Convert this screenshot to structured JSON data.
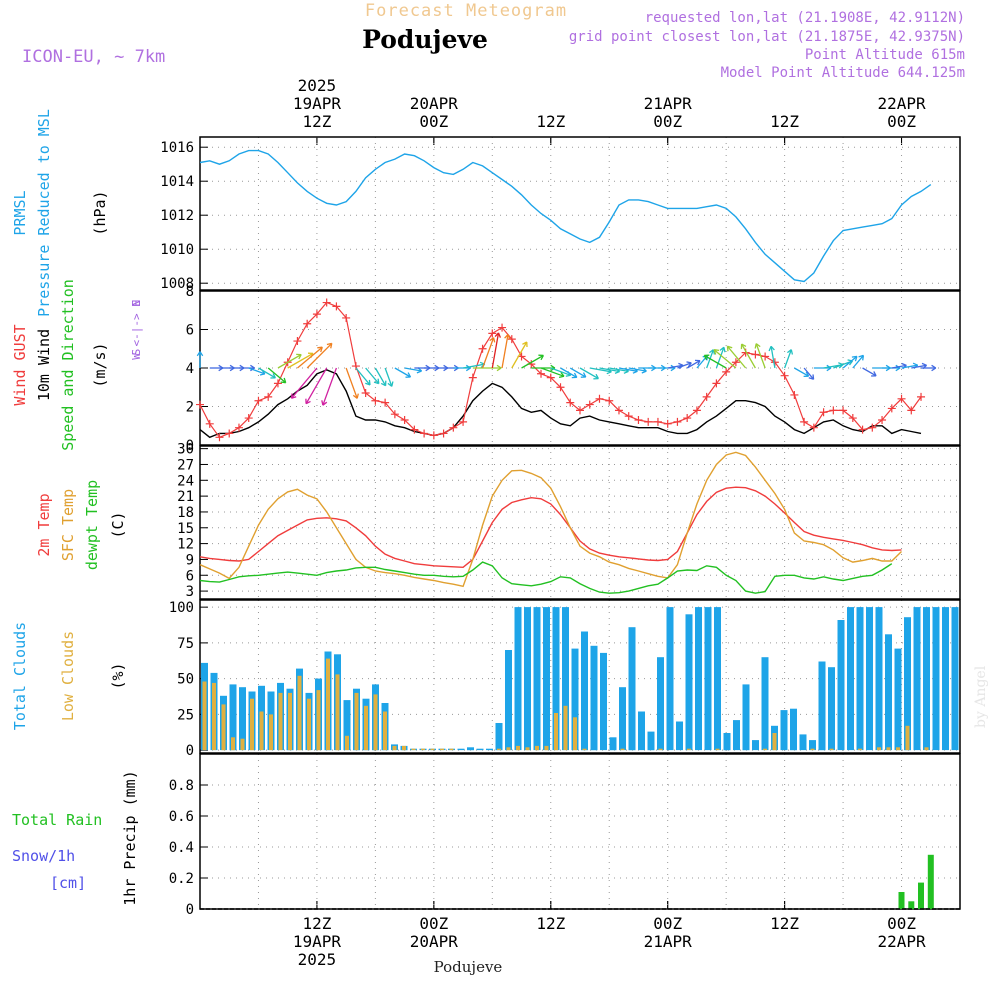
{
  "header": {
    "super_title": "Forecast Meteogram",
    "location": "Podujeve",
    "model": "ICON-EU, ~ 7km",
    "requested": "requested lon,lat (21.1908E, 42.9112N)",
    "grid_point": "grid point closest lon,lat (21.1875E, 42.9375N)",
    "point_altitude": "Point Altitude 615m",
    "model_altitude": "Model Point Altitude 644.125m",
    "footer_location": "Podujeve",
    "watermark": "by Angel"
  },
  "time_axis": {
    "start": "19APR 00Z",
    "end": "22APR 06Z",
    "step_hours": 1,
    "top_ticks": [
      {
        "lines": [
          "2025",
          "19APR",
          "12Z"
        ],
        "hour": 12
      },
      {
        "lines": [
          "20APR",
          "00Z"
        ],
        "hour": 24
      },
      {
        "lines": [
          "12Z"
        ],
        "hour": 36
      },
      {
        "lines": [
          "21APR",
          "00Z"
        ],
        "hour": 48
      },
      {
        "lines": [
          "12Z"
        ],
        "hour": 60
      },
      {
        "lines": [
          "22APR",
          "00Z"
        ],
        "hour": 72
      }
    ],
    "bottom_ticks": [
      {
        "lines": [
          "12Z",
          "19APR",
          "2025"
        ],
        "hour": 12
      },
      {
        "lines": [
          "00Z",
          "20APR"
        ],
        "hour": 24
      },
      {
        "lines": [
          "12Z"
        ],
        "hour": 36
      },
      {
        "lines": [
          "00Z",
          "21APR"
        ],
        "hour": 48
      },
      {
        "lines": [
          "12Z"
        ],
        "hour": 60
      },
      {
        "lines": [
          "00Z",
          "22APR"
        ],
        "hour": 72
      }
    ]
  },
  "colors": {
    "pressure": "#1ea4e8",
    "gust": "#f03c3c",
    "wind": "#000000",
    "wind_legend": "#22c022",
    "compass": "#a060e0",
    "t2m": "#f03c3c",
    "tsfc": "#e0a030",
    "dewpt": "#22c022",
    "total_clouds": "#1ea4e8",
    "low_clouds": "#e0b040",
    "rain": "#22c022",
    "snow": "#5050e8",
    "header": "#b070e0",
    "super_title": "#f0c890"
  },
  "chart_data": [
    {
      "type": "line",
      "title": "Pressure Reduced to MSL",
      "ylabels": [
        "PRMSL",
        "Pressure Reduced to MSL",
        "(hPa)"
      ],
      "ylim": [
        1007.6,
        1016.6
      ],
      "yticks": [
        1008,
        1010,
        1012,
        1014,
        1016
      ],
      "series": [
        {
          "name": "PRMSL",
          "values": [
            1015.1,
            1015.2,
            1015.0,
            1015.2,
            1015.6,
            1015.8,
            1015.8,
            1015.6,
            1015.1,
            1014.5,
            1013.9,
            1013.4,
            1013.0,
            1012.7,
            1012.6,
            1012.8,
            1013.4,
            1014.2,
            1014.7,
            1015.1,
            1015.3,
            1015.6,
            1015.5,
            1015.2,
            1014.8,
            1014.5,
            1014.4,
            1014.7,
            1015.1,
            1014.9,
            1014.5,
            1014.1,
            1013.7,
            1013.2,
            1012.6,
            1012.1,
            1011.7,
            1011.2,
            1010.9,
            1010.6,
            1010.4,
            1010.7,
            1011.6,
            1012.6,
            1012.9,
            1012.9,
            1012.8,
            1012.6,
            1012.4,
            1012.4,
            1012.4,
            1012.4,
            1012.5,
            1012.6,
            1012.4,
            1011.9,
            1011.2,
            1010.4,
            1009.7,
            1009.2,
            1008.7,
            1008.2,
            1008.1,
            1008.6,
            1009.6,
            1010.5,
            1011.1,
            1011.2,
            1011.3,
            1011.4,
            1011.5,
            1011.8,
            1012.6,
            1013.1,
            1013.4,
            1013.8
          ]
        }
      ]
    },
    {
      "type": "line",
      "title": "Wind Gust, 10m Wind Speed and Direction",
      "ylabels": [
        "Wind GUST",
        "10m Wind",
        "Speed and Direction",
        "(m/s)"
      ],
      "compass": [
        "N",
        "W <-|-> E",
        "S"
      ],
      "ylim": [
        0,
        8
      ],
      "yticks": [
        0,
        2,
        4,
        6,
        8
      ],
      "series": [
        {
          "name": "Wind GUST",
          "values": [
            2.1,
            1.1,
            0.4,
            0.6,
            0.9,
            1.4,
            2.3,
            2.5,
            3.2,
            4.3,
            5.4,
            6.3,
            6.8,
            7.4,
            7.2,
            6.6,
            4.1,
            2.7,
            2.3,
            2.2,
            1.6,
            1.3,
            0.8,
            0.6,
            0.5,
            0.6,
            0.9,
            1.2,
            3.5,
            5.0,
            5.8,
            6.1,
            5.5,
            4.6,
            4.2,
            3.7,
            3.5,
            3.0,
            2.2,
            1.8,
            2.1,
            2.4,
            2.3,
            1.8,
            1.5,
            1.3,
            1.2,
            1.2,
            1.1,
            1.2,
            1.4,
            1.8,
            2.5,
            3.2,
            3.8,
            4.3,
            4.8,
            4.7,
            4.6,
            4.3,
            3.6,
            2.6,
            1.2,
            0.9,
            1.7,
            1.8,
            1.8,
            1.4,
            0.8,
            0.9,
            1.3,
            1.9,
            2.4,
            1.8,
            2.5
          ]
        },
        {
          "name": "10m Wind",
          "values": [
            0.8,
            0.4,
            0.6,
            0.6,
            0.7,
            0.9,
            1.2,
            1.6,
            2.1,
            2.4,
            2.8,
            3.1,
            3.7,
            3.9,
            3.7,
            2.8,
            1.5,
            1.3,
            1.3,
            1.2,
            1.0,
            0.9,
            0.7,
            0.6,
            0.5,
            0.6,
            0.9,
            1.5,
            2.3,
            2.8,
            3.2,
            3.0,
            2.5,
            1.9,
            1.7,
            1.8,
            1.4,
            1.1,
            1.0,
            1.4,
            1.5,
            1.3,
            1.2,
            1.1,
            1.0,
            0.9,
            0.9,
            0.9,
            0.7,
            0.6,
            0.6,
            0.8,
            1.2,
            1.5,
            1.9,
            2.3,
            2.3,
            2.2,
            2.0,
            1.5,
            1.2,
            0.8,
            0.6,
            0.9,
            1.2,
            1.3,
            1.0,
            0.8,
            0.7,
            1.0,
            1.0,
            0.6,
            0.8,
            0.7,
            0.6
          ]
        },
        {
          "name": "Wind Direction",
          "unit": "degrees_to",
          "values": [
            0,
            90,
            90,
            90,
            90,
            110,
            120,
            130,
            60,
            60,
            50,
            45,
            220,
            210,
            200,
            160,
            140,
            140,
            150,
            160,
            120,
            100,
            90,
            90,
            90,
            90,
            90,
            80,
            90,
            20,
            10,
            10,
            30,
            60,
            90,
            110,
            110,
            120,
            120,
            120,
            100,
            100,
            100,
            100,
            100,
            90,
            90,
            90,
            80,
            70,
            60,
            40,
            20,
            20,
            300,
            310,
            320,
            330,
            340,
            350,
            20,
            120,
            140,
            90,
            80,
            70,
            50,
            40,
            120,
            90,
            90,
            80,
            80,
            80,
            90
          ]
        }
      ]
    },
    {
      "type": "line",
      "title": "2m Temp, SFC Temp, dewpt Temp",
      "ylabels": [
        "2m Temp",
        "SFC Temp",
        "dewpt Temp",
        "(C)"
      ],
      "ylim": [
        1.5,
        30.5
      ],
      "yticks": [
        3,
        6,
        9,
        12,
        15,
        18,
        21,
        24,
        27,
        30
      ],
      "series": [
        {
          "name": "2m Temp",
          "values": [
            9.5,
            9.2,
            9.0,
            8.8,
            8.7,
            9.0,
            10.5,
            12.0,
            13.5,
            14.5,
            15.5,
            16.5,
            16.8,
            16.9,
            16.7,
            16.3,
            15.0,
            13.5,
            11.5,
            10.0,
            9.2,
            8.7,
            8.2,
            8.0,
            7.8,
            7.7,
            7.6,
            7.5,
            9.0,
            12.5,
            16.0,
            18.5,
            19.8,
            20.3,
            20.7,
            20.5,
            19.5,
            17.5,
            15.0,
            12.5,
            11.0,
            10.2,
            9.8,
            9.5,
            9.3,
            9.1,
            8.9,
            8.8,
            9.0,
            10.5,
            14.0,
            17.5,
            20.0,
            21.7,
            22.5,
            22.7,
            22.6,
            22.0,
            21.0,
            19.5,
            17.8,
            16.0,
            14.3,
            13.6,
            13.2,
            12.9,
            12.6,
            12.2,
            11.8,
            11.2,
            10.8,
            10.7,
            10.8
          ]
        },
        {
          "name": "SFC Temp",
          "values": [
            8.0,
            7.2,
            6.4,
            5.4,
            7.5,
            11.5,
            15.5,
            18.5,
            20.5,
            21.8,
            22.3,
            21.2,
            20.5,
            18.0,
            15.0,
            12.0,
            9.0,
            7.5,
            6.8,
            6.5,
            6.3,
            6.0,
            5.6,
            5.3,
            5.0,
            4.6,
            4.3,
            3.9,
            9.0,
            15.5,
            21.0,
            24.0,
            25.8,
            25.9,
            25.3,
            24.5,
            22.5,
            19.0,
            15.0,
            11.5,
            10.2,
            9.5,
            8.5,
            8.0,
            7.3,
            6.8,
            6.3,
            5.8,
            5.5,
            8.0,
            14.0,
            19.5,
            24.0,
            27.0,
            28.8,
            29.3,
            28.7,
            26.5,
            24.0,
            21.5,
            18.5,
            14.0,
            12.5,
            12.2,
            11.8,
            10.8,
            9.3,
            8.5,
            8.8,
            9.2,
            8.7,
            8.7,
            10.5
          ]
        },
        {
          "name": "dewpt Temp",
          "values": [
            5.0,
            4.8,
            4.7,
            5.2,
            5.7,
            5.9,
            6.0,
            6.2,
            6.4,
            6.6,
            6.4,
            6.2,
            6.0,
            6.5,
            6.8,
            7.0,
            7.4,
            7.5,
            7.5,
            7.1,
            6.8,
            6.5,
            6.2,
            6.0,
            6.0,
            5.8,
            5.7,
            5.8,
            7.0,
            8.5,
            7.8,
            5.5,
            4.4,
            4.2,
            4.0,
            4.3,
            4.8,
            5.7,
            5.5,
            4.4,
            3.5,
            2.8,
            2.6,
            2.7,
            3.0,
            3.5,
            4.0,
            4.3,
            5.5,
            6.8,
            7.0,
            6.9,
            7.8,
            7.5,
            6.0,
            5.0,
            3.0,
            2.6,
            2.9,
            5.8,
            6.0,
            6.0,
            5.5,
            5.3,
            5.7,
            5.3,
            5.0,
            5.4,
            5.8,
            6.0,
            7.0,
            8.2
          ]
        }
      ]
    },
    {
      "type": "bar",
      "title": "Total Clouds, Low Clouds",
      "ylabels": [
        "Total Clouds",
        "Low Clouds",
        "(%)"
      ],
      "ylim": [
        -2,
        105
      ],
      "yticks": [
        0,
        25,
        50,
        75,
        100
      ],
      "series": [
        {
          "name": "Total Clouds",
          "values": [
            61,
            54,
            38,
            46,
            44,
            41,
            45,
            41,
            47,
            43,
            57,
            40,
            50,
            69,
            67,
            35,
            43,
            36,
            46,
            33,
            4,
            3,
            1,
            1,
            1,
            1,
            1,
            1,
            2,
            1,
            1,
            19,
            70,
            100,
            100,
            100,
            100,
            100,
            100,
            71,
            83,
            73,
            68,
            9,
            44,
            86,
            27,
            13,
            65,
            100,
            20,
            95,
            100,
            100,
            100,
            12,
            21,
            46,
            7,
            65,
            17,
            28,
            29,
            11,
            7,
            62,
            58,
            91,
            100,
            100,
            100,
            100,
            81,
            71,
            93,
            100,
            100,
            100,
            100,
            100
          ]
        },
        {
          "name": "Low Clouds",
          "values": [
            48,
            47,
            32,
            9,
            8,
            36,
            27,
            25,
            40,
            40,
            52,
            36,
            42,
            64,
            53,
            10,
            40,
            31,
            39,
            27,
            3,
            3,
            1,
            1,
            1,
            1,
            1,
            0,
            0,
            0,
            0,
            1,
            2,
            3,
            2,
            3,
            3,
            26,
            31,
            23,
            1,
            0,
            0,
            0,
            1,
            0,
            0,
            0,
            1,
            0,
            0,
            1,
            0,
            0,
            1,
            0,
            0,
            0,
            0,
            1,
            12,
            0,
            0,
            0,
            1,
            0,
            1,
            0,
            0,
            1,
            0,
            2,
            2,
            2,
            17,
            0,
            2,
            0,
            0,
            0
          ]
        }
      ]
    },
    {
      "type": "bar",
      "title": "1hr Precip (mm)",
      "ylabels": [
        "Total Rain",
        "Snow/1h",
        "[cm]",
        "1hr Precip (mm)"
      ],
      "ylim": [
        0,
        1.0
      ],
      "yticks": [
        0,
        0.2,
        0.4,
        0.6,
        0.8
      ],
      "series": [
        {
          "name": "Total Rain",
          "values": [
            0,
            0,
            0,
            0,
            0,
            0,
            0,
            0,
            0,
            0,
            0,
            0,
            0,
            0,
            0,
            0,
            0,
            0,
            0,
            0,
            0,
            0,
            0,
            0,
            0,
            0,
            0,
            0,
            0,
            0,
            0,
            0,
            0,
            0,
            0,
            0,
            0,
            0,
            0,
            0,
            0,
            0,
            0,
            0,
            0,
            0,
            0,
            0,
            0,
            0,
            0,
            0,
            0,
            0,
            0,
            0,
            0,
            0,
            0,
            0,
            0,
            0,
            0,
            0,
            0,
            0,
            0,
            0,
            0,
            0,
            0,
            0,
            0.11,
            0.05,
            0.17,
            0.35
          ]
        },
        {
          "name": "Snow/1h",
          "values": []
        }
      ]
    }
  ]
}
